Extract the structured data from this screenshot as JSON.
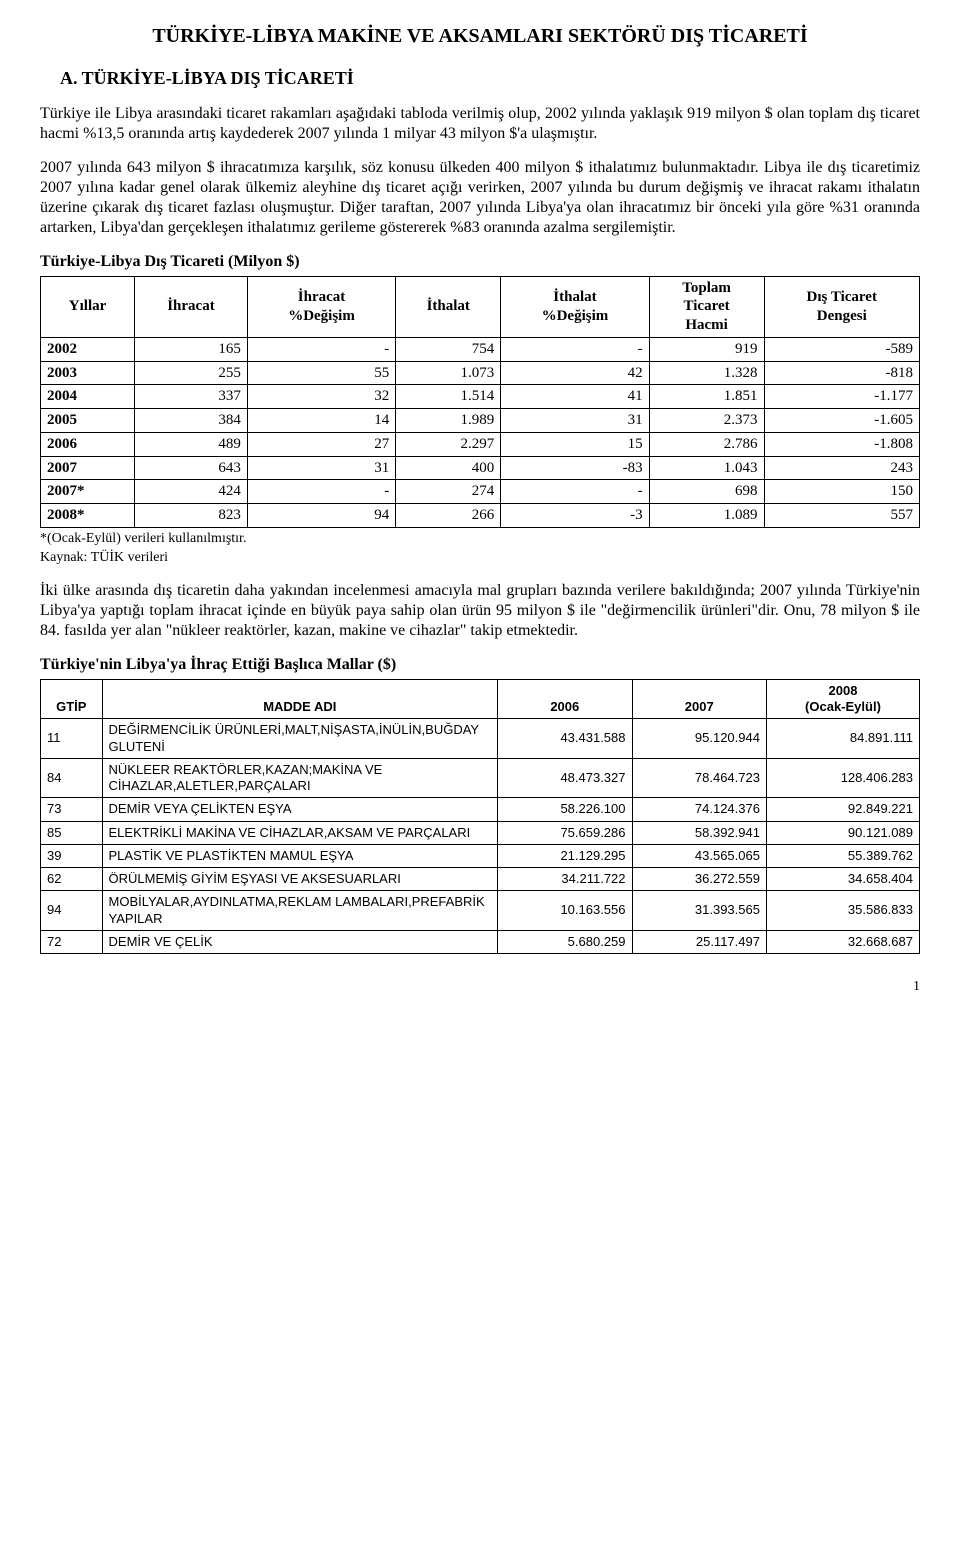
{
  "title": "TÜRKİYE-LİBYA MAKİNE VE AKSAMLARI SEKTÖRÜ DIŞ TİCARETİ",
  "sectionA": "A. TÜRKİYE-LİBYA DIŞ TİCARETİ",
  "para1": "Türkiye ile Libya arasındaki ticaret rakamları aşağıdaki tabloda verilmiş olup, 2002 yılında yaklaşık 919 milyon $ olan toplam dış ticaret hacmi %13,5 oranında artış kaydederek 2007 yılında 1 milyar 43 milyon $'a ulaşmıştır.",
  "para2": "2007 yılında 643 milyon $ ihracatımıza karşılık, söz konusu ülkeden 400 milyon $ ithalatımız bulunmaktadır. Libya ile dış ticaretimiz 2007 yılına kadar genel olarak ülkemiz aleyhine dış ticaret açığı verirken, 2007 yılında bu durum değişmiş ve ihracat rakamı ithalatın üzerine çıkarak dış ticaret fazlası oluşmuştur. Diğer taraftan, 2007 yılında Libya'ya olan ihracatımız bir önceki yıla göre %31 oranında artarken, Libya'dan gerçekleşen ithalatımız gerileme göstererek %83 oranında azalma sergilemiştir.",
  "table1": {
    "title": "Türkiye-Libya Dış Ticareti (Milyon $)",
    "headers": [
      "Yıllar",
      "İhracat",
      "İhracat\n%Değişim",
      "İthalat",
      "İthalat\n%Değişim",
      "Toplam\nTicaret\nHacmi",
      "Dış Ticaret\nDengesi"
    ],
    "rows": [
      [
        "2002",
        "165",
        "-",
        "754",
        "-",
        "919",
        "-589"
      ],
      [
        "2003",
        "255",
        "55",
        "1.073",
        "42",
        "1.328",
        "-818"
      ],
      [
        "2004",
        "337",
        "32",
        "1.514",
        "41",
        "1.851",
        "-1.177"
      ],
      [
        "2005",
        "384",
        "14",
        "1.989",
        "31",
        "2.373",
        "-1.605"
      ],
      [
        "2006",
        "489",
        "27",
        "2.297",
        "15",
        "2.786",
        "-1.808"
      ],
      [
        "2007",
        "643",
        "31",
        "400",
        "-83",
        "1.043",
        "243"
      ],
      [
        "2007*",
        "424",
        "-",
        "274",
        "-",
        "698",
        "150"
      ],
      [
        "2008*",
        "823",
        "94",
        "266",
        "-3",
        "1.089",
        "557"
      ]
    ],
    "note1": "*(Ocak-Eylül) verileri kullanılmıştır.",
    "note2": "Kaynak: TÜİK verileri"
  },
  "para3": "İki ülke arasında dış ticaretin daha yakından incelenmesi amacıyla mal grupları bazında verilere bakıldığında; 2007 yılında Türkiye'nin Libya'ya yaptığı toplam ihracat içinde en büyük paya sahip olan ürün 95 milyon $ ile \"değirmencilik ürünleri\"dir. Onu, 78 milyon $ ile 84. fasılda yer alan \"nükleer reaktörler, kazan, makine ve cihazlar\" takip etmektedir.",
  "table2": {
    "title": "Türkiye'nin Libya'ya İhraç Ettiği Başlıca Mallar ($)",
    "headers": [
      "GTİP",
      "MADDE ADI",
      "2006",
      "2007",
      "2008\n(Ocak-Eylül)"
    ],
    "rows": [
      [
        "11",
        "DEĞİRMENCİLİK ÜRÜNLERİ,MALT,NİŞASTA,İNÜLİN,BUĞDAY GLUTENİ",
        "43.431.588",
        "95.120.944",
        "84.891.111"
      ],
      [
        "84",
        "NÜKLEER REAKTÖRLER,KAZAN;MAKİNA VE CİHAZLAR,ALETLER,PARÇALARI",
        "48.473.327",
        "78.464.723",
        "128.406.283"
      ],
      [
        "73",
        "DEMİR VEYA ÇELİKTEN EŞYA",
        "58.226.100",
        "74.124.376",
        "92.849.221"
      ],
      [
        "85",
        "ELEKTRİKLİ MAKİNA VE CİHAZLAR,AKSAM VE PARÇALARI",
        "75.659.286",
        "58.392.941",
        "90.121.089"
      ],
      [
        "39",
        "PLASTİK VE PLASTİKTEN MAMUL EŞYA",
        "21.129.295",
        "43.565.065",
        "55.389.762"
      ],
      [
        "62",
        "ÖRÜLMEMİŞ GİYİM EŞYASI VE AKSESUARLARI",
        "34.211.722",
        "36.272.559",
        "34.658.404"
      ],
      [
        "94",
        "MOBİLYALAR,AYDINLATMA,REKLAM LAMBALARI,PREFABRİK YAPILAR",
        "10.163.556",
        "31.393.565",
        "35.586.833"
      ],
      [
        "72",
        "DEMİR VE ÇELİK",
        "5.680.259",
        "25.117.497",
        "32.668.687"
      ]
    ]
  },
  "pagenum": "1"
}
